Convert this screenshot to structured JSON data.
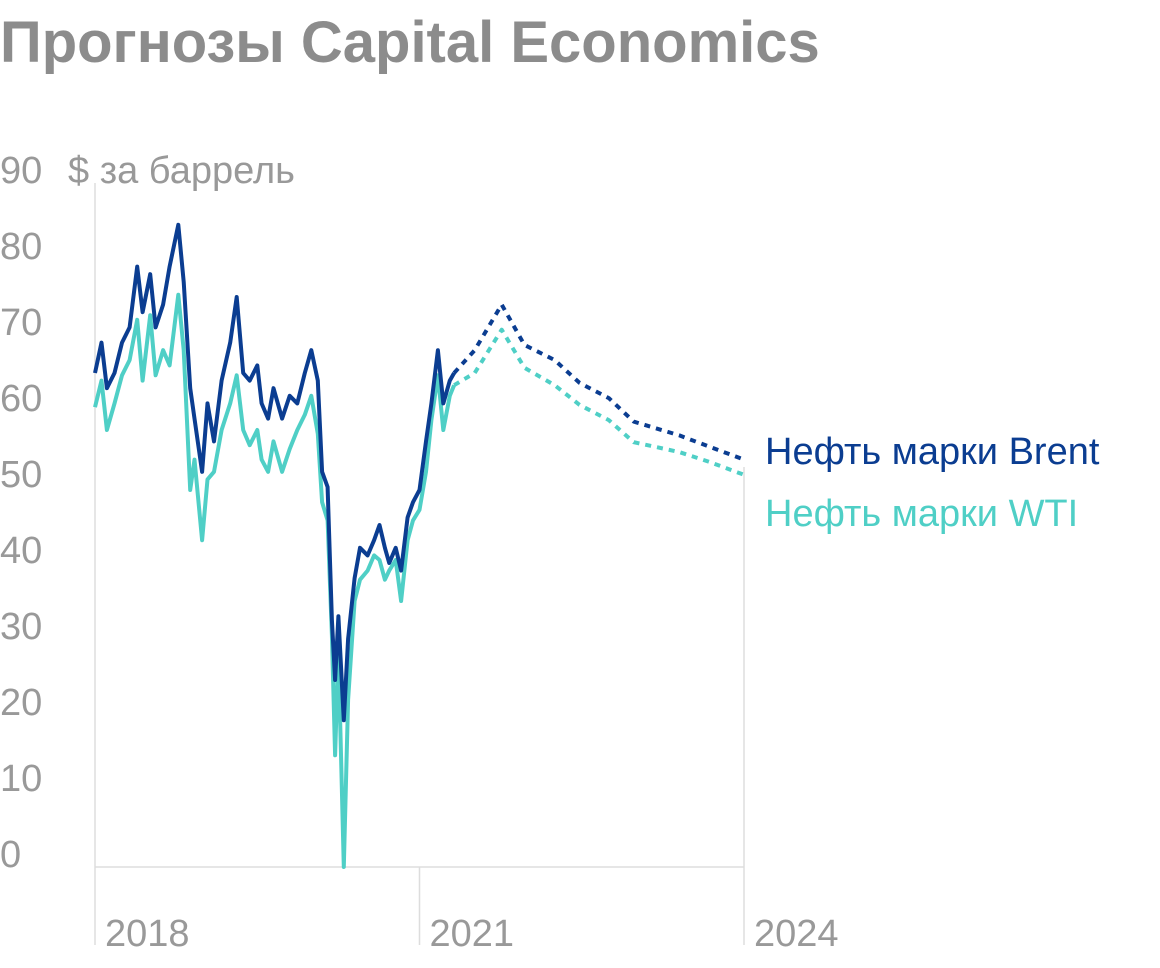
{
  "chart_data": {
    "type": "line",
    "title": "Прогнозы Capital Economics",
    "y_unit": "$ за баррель",
    "x": [
      2018.0,
      2018.06,
      2018.11,
      2018.18,
      2018.25,
      2018.32,
      2018.39,
      2018.44,
      2018.51,
      2018.56,
      2018.63,
      2018.69,
      2018.77,
      2018.82,
      2018.88,
      2018.92,
      2018.99,
      2019.04,
      2019.1,
      2019.17,
      2019.25,
      2019.31,
      2019.37,
      2019.43,
      2019.5,
      2019.54,
      2019.6,
      2019.65,
      2019.73,
      2019.8,
      2019.87,
      2019.94,
      2020.0,
      2020.06,
      2020.1,
      2020.15,
      2020.19,
      2020.22,
      2020.25,
      2020.3,
      2020.34,
      2020.4,
      2020.45,
      2020.52,
      2020.58,
      2020.63,
      2020.68,
      2020.72,
      2020.78,
      2020.83,
      2020.89,
      2020.94,
      2021.0,
      2021.06,
      2021.11,
      2021.17,
      2021.22,
      2021.28,
      2021.32
    ],
    "forecast_x": [
      2021.32,
      2021.51,
      2021.76,
      2021.97,
      2022.25,
      2022.48,
      2022.75,
      2022.98,
      2023.4,
      2023.68,
      2024.0
    ],
    "series": [
      {
        "name": "Нефть марки Brent",
        "color": "#0b3d91",
        "values": [
          65,
          69,
          63,
          65,
          69,
          71,
          79,
          73,
          78,
          71,
          74,
          79,
          84.5,
          77,
          63,
          59,
          52,
          61,
          56,
          64,
          69,
          75,
          65,
          64,
          66,
          61,
          59,
          63,
          59,
          62,
          61,
          65,
          68,
          64,
          52,
          50,
          32.5,
          24.6,
          33,
          19.3,
          30,
          38,
          42,
          41,
          43,
          45,
          42,
          40,
          42,
          39,
          46,
          48,
          49.6,
          56,
          61,
          68,
          61,
          64,
          65
        ],
        "forecast": [
          65,
          68,
          74,
          68.7,
          66.7,
          63.7,
          61.7,
          58.6,
          56.8,
          55.3,
          53.6
        ]
      },
      {
        "name": "Нефть марки WTI",
        "color": "#4fcfc6",
        "values": [
          60.5,
          64,
          57.5,
          61,
          64.7,
          66.7,
          72,
          64,
          72.6,
          64.7,
          68,
          66,
          75.3,
          68,
          49.6,
          53.6,
          43,
          51,
          52,
          57.5,
          61,
          64.7,
          57.5,
          55.5,
          57.5,
          53.6,
          52,
          56,
          52,
          55,
          57.5,
          59.5,
          62,
          57,
          48,
          45.6,
          30.5,
          14.7,
          28.5,
          0,
          22,
          35,
          37.8,
          39,
          41,
          40.4,
          37.8,
          39,
          40.4,
          35,
          43,
          45.6,
          47,
          52,
          58.8,
          64.7,
          57.5,
          62,
          63.4
        ],
        "forecast": [
          63.4,
          65,
          70.7,
          65.7,
          63.4,
          60.8,
          58.8,
          55.9,
          54.6,
          53.3,
          51.6
        ]
      }
    ],
    "xlim": [
      2018,
      2024
    ],
    "xticks": [
      2018,
      2021,
      2024
    ],
    "ylim": [
      0,
      90
    ],
    "yticks": [
      0,
      10,
      20,
      30,
      40,
      50,
      60,
      70,
      80,
      90
    ]
  }
}
